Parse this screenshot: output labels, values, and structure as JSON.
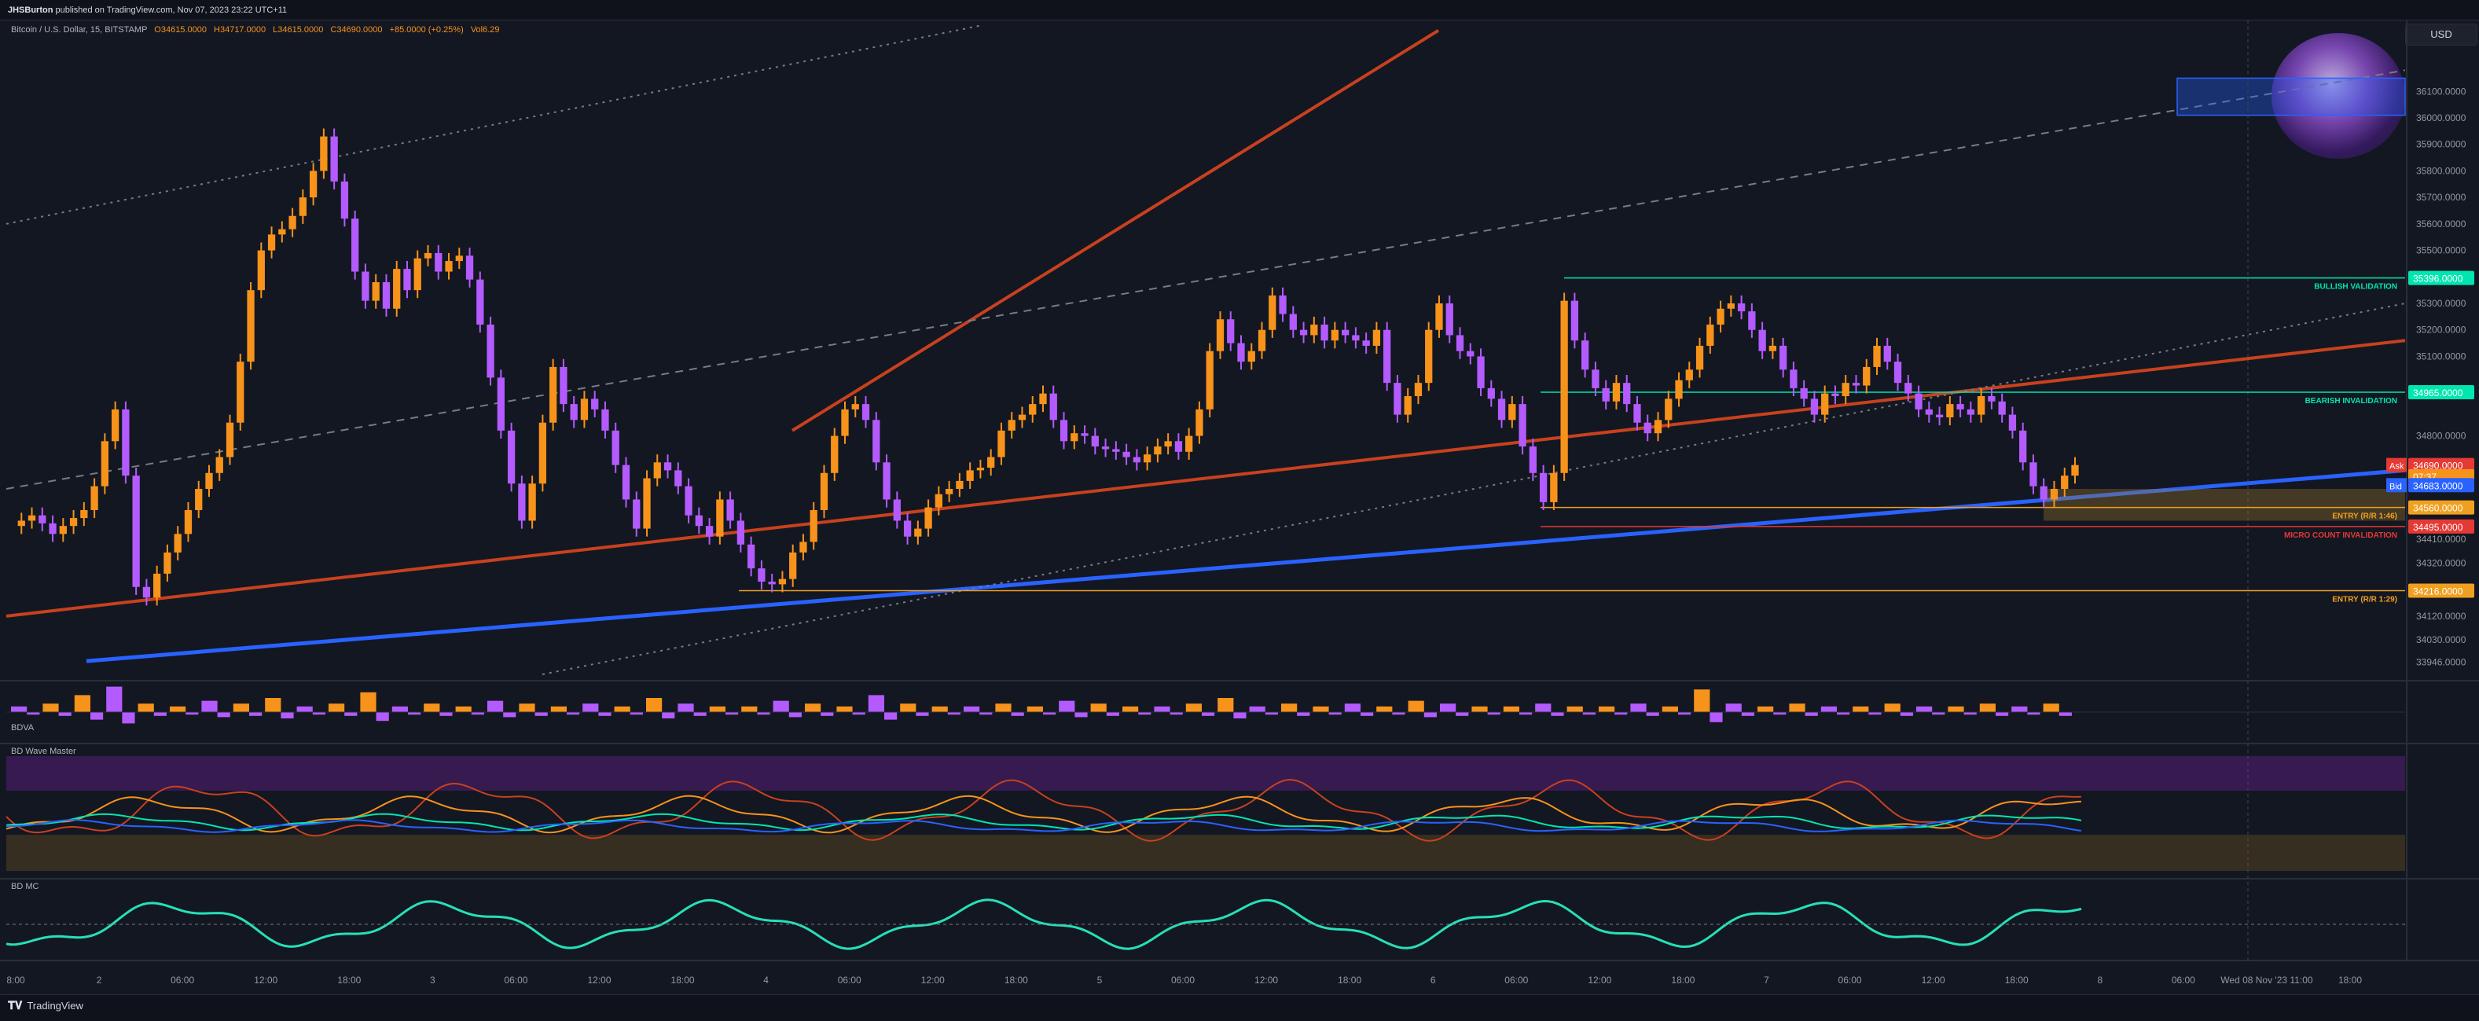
{
  "header": {
    "author": "JHSBurton",
    "published_text": "published on TradingView.com, Nov 07, 2023 23:22 UTC+11"
  },
  "symbol_line": {
    "symbol": "Bitcoin / U.S. Dollar, 15, BITSTAMP",
    "open": "O34615.0000",
    "high": "H34717.0000",
    "low": "L34615.0000",
    "close": "C34690.0000",
    "change": "+85.0000 (+0.25%)",
    "volume": "Vol6.29"
  },
  "currency_button": "USD",
  "logo_text": "TradingView",
  "panes": {
    "bdva": "BDVA",
    "wave_master": "BD Wave Master",
    "bdmc": "BD MC"
  },
  "colors": {
    "background": "#131722",
    "up_candle": "#f7931a",
    "down_candle": "#b45bff",
    "red_trend": "#c8411e",
    "blue_trend": "#2962ff",
    "bullish_green": "#00e6b0",
    "entry_orange": "#f0a020",
    "invalidation_red": "#e53935"
  },
  "chart_data": {
    "type": "line",
    "title": "",
    "xlabel": "",
    "ylabel": "",
    "ylim": [
      33900,
      36350
    ],
    "x_ticks": [
      "8:00",
      "2",
      "06:00",
      "12:00",
      "18:00",
      "3",
      "06:00",
      "12:00",
      "18:00",
      "4",
      "06:00",
      "12:00",
      "18:00",
      "5",
      "06:00",
      "12:00",
      "18:00",
      "6",
      "06:00",
      "12:00",
      "18:00",
      "7",
      "06:00",
      "12:00",
      "18:00",
      "8",
      "06:00",
      "Wed 08 Nov '23   11:00",
      "18:00"
    ],
    "y_ticks": [
      36100,
      36000,
      35900,
      35800,
      35700,
      35600,
      35500,
      35300,
      35200,
      35100,
      34800,
      34410,
      34320,
      34120,
      34030,
      33946
    ],
    "price_tags": [
      {
        "label": "35396.0000",
        "value": 35396,
        "color": "#00e6b0"
      },
      {
        "label": "34965.0000",
        "value": 34965,
        "color": "#00e6b0"
      },
      {
        "label": "34690.0000",
        "value": 34690,
        "color": "#e53935"
      },
      {
        "label": "07:37",
        "value": 34648,
        "color": "#f7931a"
      },
      {
        "label": "34683.0000",
        "value": 34614,
        "color": "#2962ff"
      },
      {
        "label": "34560.0000",
        "value": 34530,
        "color": "#f0a020"
      },
      {
        "label": "34495.0000",
        "value": 34458,
        "color": "#e53935"
      },
      {
        "label": "34216.0000",
        "value": 34216,
        "color": "#f0a020"
      }
    ],
    "price_tag_prefixes": {
      "ask": "Ask",
      "bid": "Bid"
    },
    "level_labels": [
      {
        "text": "BULLISH VALIDATION",
        "value": 35396,
        "color": "#00e6b0"
      },
      {
        "text": "BEARISH INVALIDATION",
        "value": 34965,
        "color": "#00e6b0"
      },
      {
        "text": "ENTRY (R/R 1:46)",
        "value": 34530,
        "color": "#f0a020"
      },
      {
        "text": "MICRO COUNT INVALIDATION",
        "value": 34458,
        "color": "#e53935"
      },
      {
        "text": "ENTRY (R/R 1:29)",
        "value": 34216,
        "color": "#f0a020"
      }
    ],
    "series": [
      {
        "values": [
          34460,
          34480,
          34500,
          34470,
          34430,
          34460,
          34490,
          34520,
          34610,
          34780,
          34900,
          34650,
          34230,
          34190,
          34280,
          34360,
          34430,
          34520,
          34600,
          34660,
          34720,
          34850,
          35080,
          35350,
          35500,
          35560,
          35580,
          35630,
          35700,
          35800,
          35930,
          35760,
          35620,
          35420,
          35310,
          35380,
          35280,
          35430,
          35350,
          35470,
          35490,
          35420,
          35460,
          35480,
          35390,
          35220,
          35020,
          34820,
          34620,
          34480,
          34620,
          34850,
          35060,
          34920,
          34860,
          34940,
          34900,
          34820,
          34690,
          34560,
          34450,
          34640,
          34700,
          34670,
          34610,
          34500,
          34460,
          34420,
          34560,
          34480,
          34390,
          34300,
          34250,
          34240,
          34260,
          34360,
          34400,
          34520,
          34660,
          34800,
          34900,
          34920,
          34860,
          34700,
          34560,
          34480,
          34420,
          34450,
          34530,
          34580,
          34600,
          34630,
          34670,
          34680,
          34720,
          34820,
          34860,
          34880,
          34920,
          34960,
          34860,
          34780,
          34810,
          34800,
          34760,
          34750,
          34740,
          34720,
          34700,
          34730,
          34760,
          34780,
          34740,
          34800,
          34900,
          35120,
          35240,
          35150,
          35080,
          35120,
          35200,
          35330,
          35260,
          35200,
          35180,
          35220,
          35160,
          35200,
          35180,
          35160,
          35140,
          35200,
          35000,
          34880,
          34950,
          35000,
          35200,
          35300,
          35180,
          35120,
          35100,
          34980,
          34940,
          34860,
          34920,
          34760,
          34660,
          34550,
          34660,
          35310,
          35160,
          35050,
          34980,
          34930,
          35000,
          34920,
          34850,
          34810,
          34860,
          34940,
          35010,
          35050,
          35140,
          35220,
          35280,
          35300,
          35270,
          35200,
          35120,
          35140,
          35050,
          34980,
          34940,
          34880,
          34960,
          34950,
          35000,
          34990,
          35060,
          35140,
          35080,
          35000,
          34960,
          34900,
          34880,
          34870,
          34920,
          34900,
          34880,
          34950,
          34930,
          34880,
          34820,
          34700,
          34610,
          34560,
          34600,
          34650,
          34690
        ]
      }
    ],
    "volume_bars": [
      0.2,
      0.3,
      0.6,
      0.9,
      0.3,
      0.2,
      0.4,
      0.3,
      0.5,
      0.2,
      0.3,
      0.7,
      0.2,
      0.3,
      0.2,
      0.4,
      0.3,
      0.2,
      0.3,
      0.2,
      0.5,
      0.3,
      0.2,
      0.2,
      0.4,
      0.3,
      0.2,
      0.6,
      0.3,
      0.2,
      0.2,
      0.3,
      0.2,
      0.4,
      0.3,
      0.2,
      0.2,
      0.3,
      0.5,
      0.2,
      0.3,
      0.2,
      0.3,
      0.2,
      0.4,
      0.3,
      0.2,
      0.2,
      0.3,
      0.2,
      0.2,
      0.3,
      0.2,
      0.8,
      0.3,
      0.2,
      0.3,
      0.2,
      0.2,
      0.3,
      0.2,
      0.2,
      0.3,
      0.2,
      0.3
    ]
  }
}
